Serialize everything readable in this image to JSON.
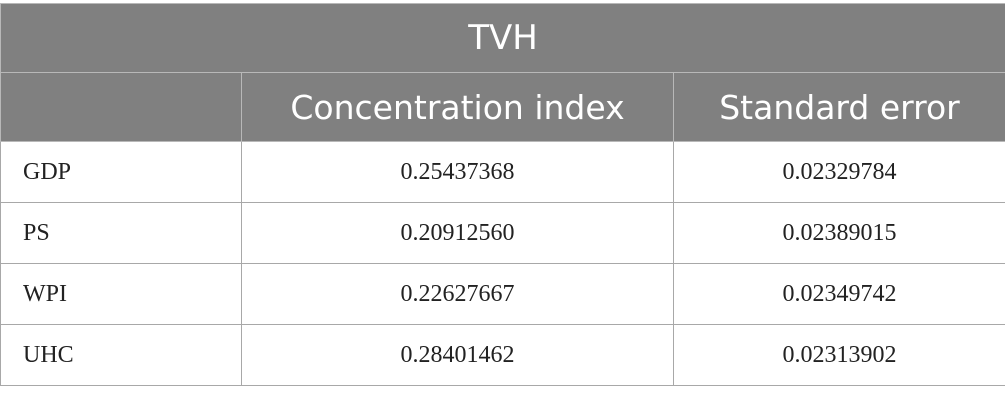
{
  "table": {
    "title": "TVH",
    "columns": [
      "",
      "Concentration index",
      "Standard error"
    ],
    "rows": [
      {
        "label": "GDP",
        "concentration_index": "0.25437368",
        "standard_error": "0.02329784"
      },
      {
        "label": "PS",
        "concentration_index": "0.20912560",
        "standard_error": "0.02389015"
      },
      {
        "label": "WPI",
        "concentration_index": "0.22627667",
        "standard_error": "0.02349742"
      },
      {
        "label": "UHC",
        "concentration_index": "0.28401462",
        "standard_error": "0.02313902"
      }
    ]
  }
}
